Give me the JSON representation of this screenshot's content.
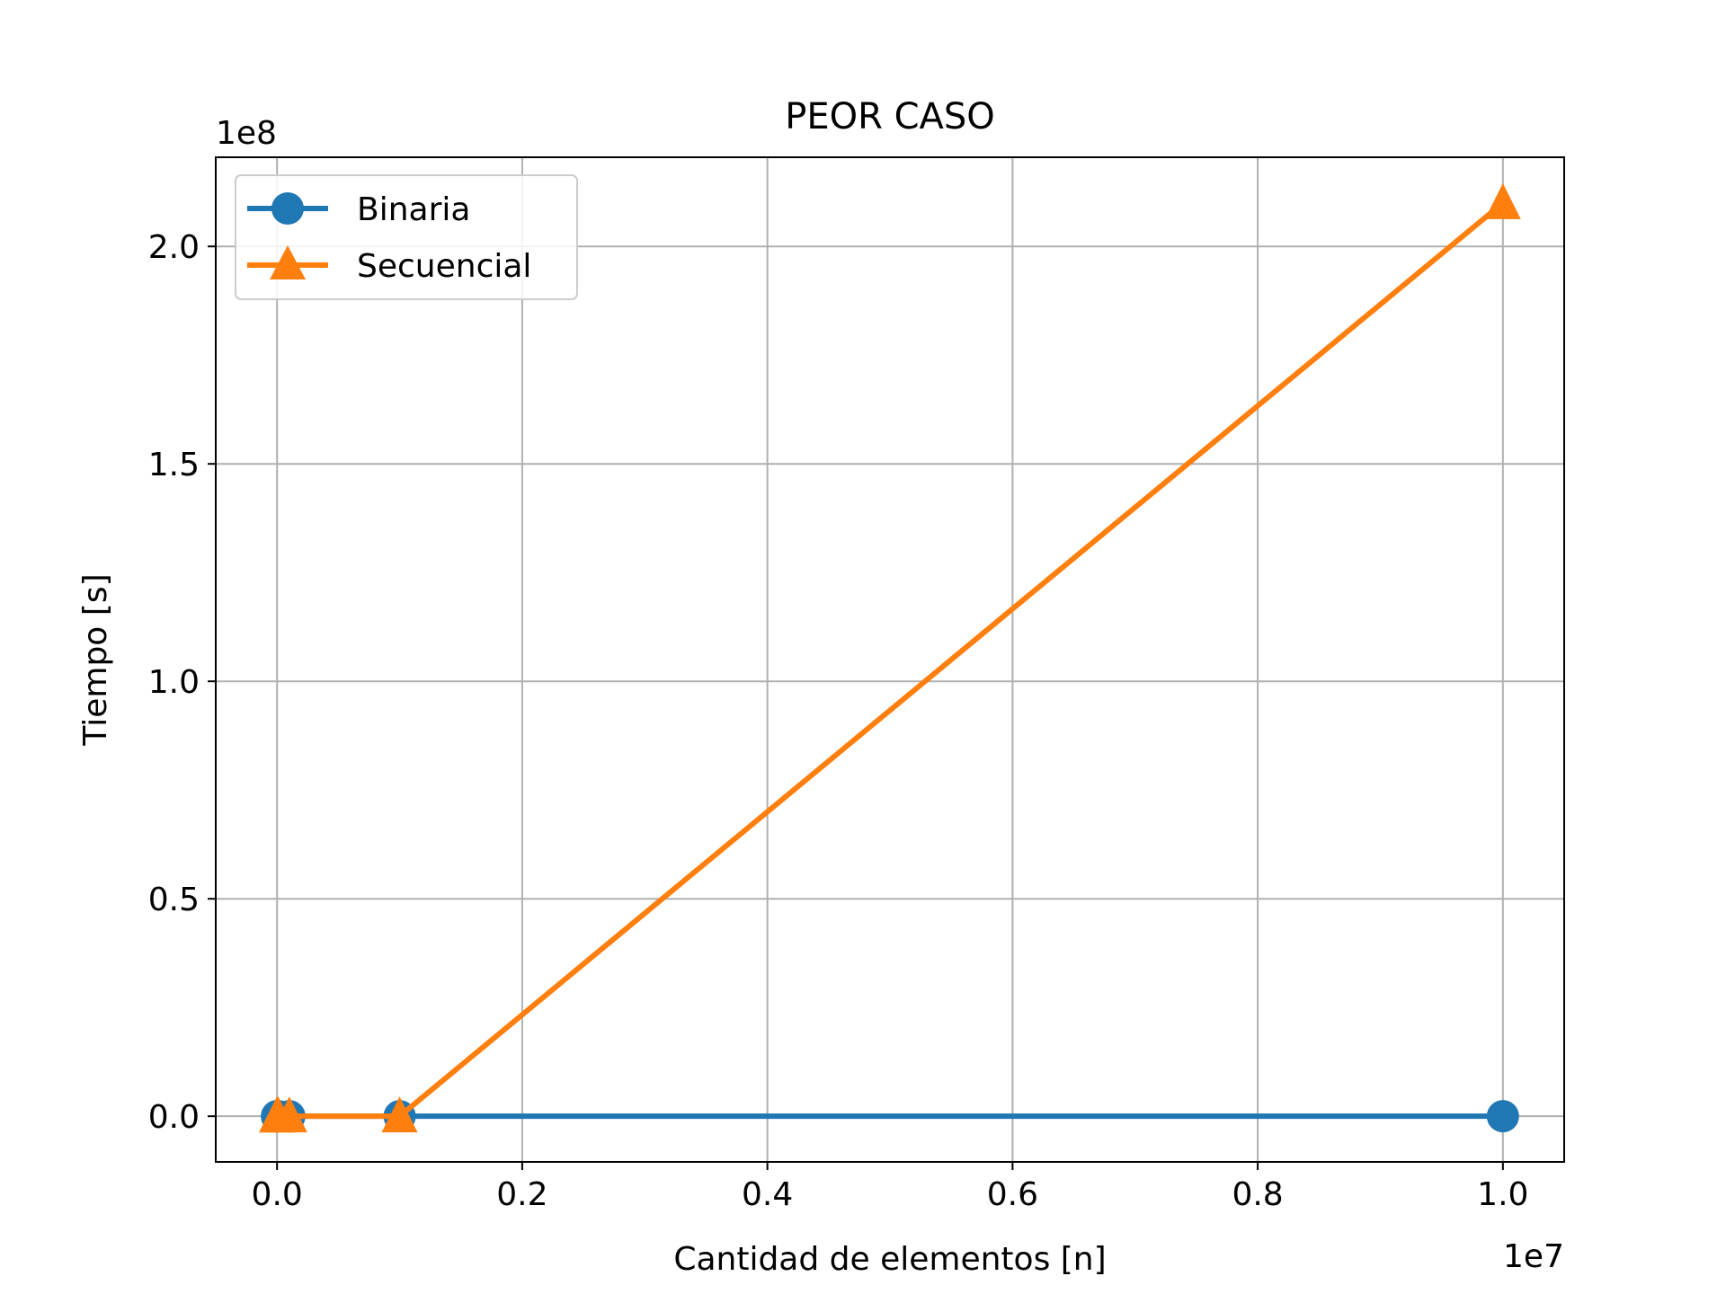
{
  "chart_data": {
    "type": "line",
    "title": "PEOR CASO",
    "xlabel": "Cantidad de elementos [n]",
    "ylabel": "Tiempo [s]",
    "x_offset_label": "1e7",
    "y_offset_label": "1e8",
    "x_scale": 10000000,
    "y_scale": 100000000,
    "xlim": [
      -500000,
      10500000
    ],
    "ylim": [
      -10500000,
      220500000
    ],
    "x_ticks": [
      0,
      2000000,
      4000000,
      6000000,
      8000000,
      10000000
    ],
    "x_tick_labels": [
      "0.0",
      "0.2",
      "0.4",
      "0.6",
      "0.8",
      "1.0"
    ],
    "y_ticks": [
      0,
      50000000,
      100000000,
      150000000,
      200000000
    ],
    "y_tick_labels": [
      "0.0",
      "0.5",
      "1.0",
      "1.5",
      "2.0"
    ],
    "grid": true,
    "legend_position": "upper-left",
    "series": [
      {
        "name": "Binaria",
        "marker": "circle",
        "color": "#1f77b4",
        "x": [
          10,
          100,
          1000,
          10000,
          100000,
          1000000,
          10000000
        ],
        "y": [
          0,
          0,
          0,
          0,
          0,
          0,
          0
        ]
      },
      {
        "name": "Secuencial",
        "marker": "triangle",
        "color": "#ff7f0e",
        "x": [
          10,
          100,
          1000,
          10000,
          100000,
          1000000,
          10000000
        ],
        "y": [
          0,
          0,
          0,
          0,
          0,
          0,
          210000000
        ]
      }
    ]
  }
}
